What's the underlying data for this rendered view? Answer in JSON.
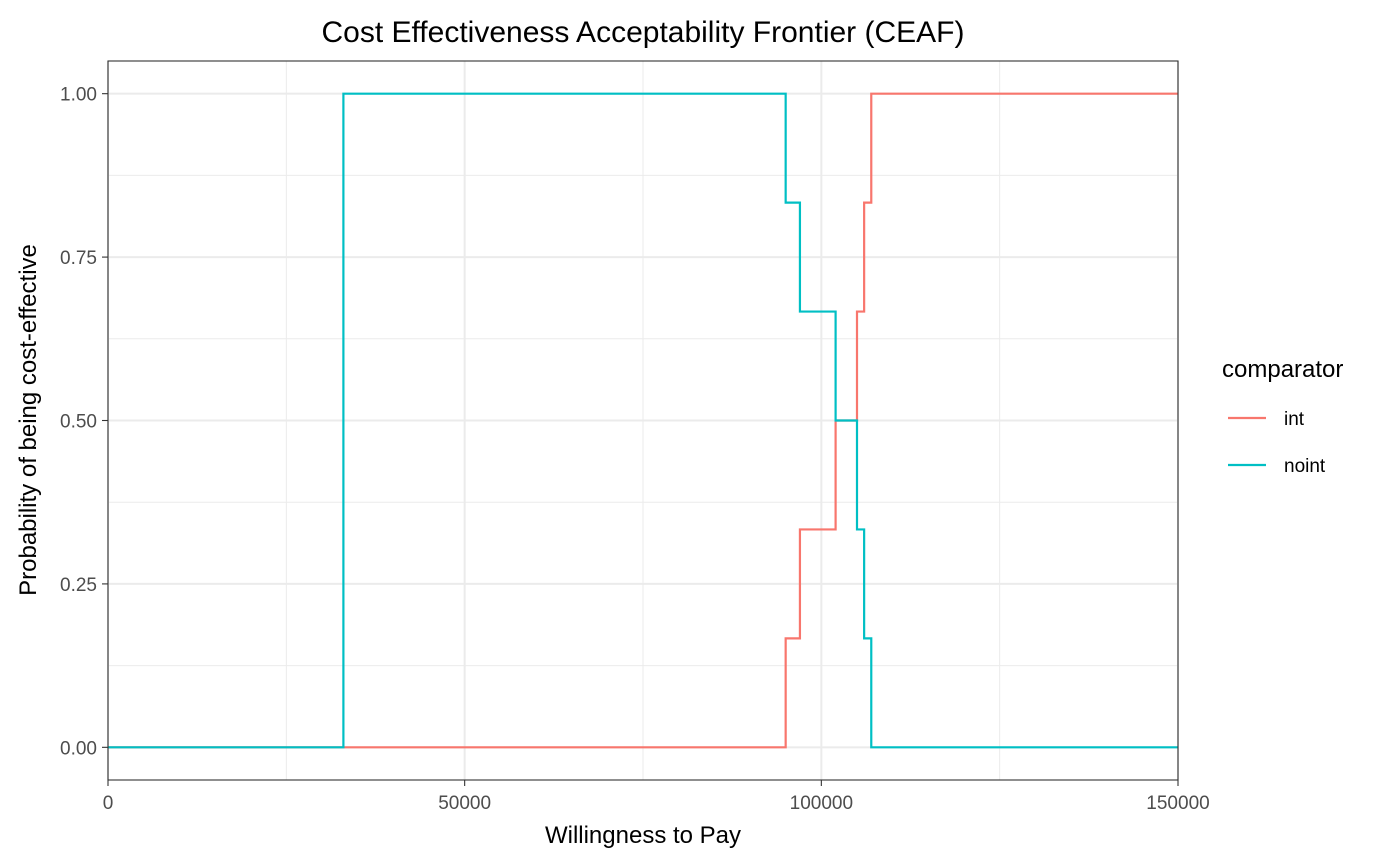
{
  "chart_data": {
    "type": "line",
    "step": true,
    "title": "Cost Effectiveness Acceptability Frontier (CEAF)",
    "xlabel": "Willingness to Pay",
    "ylabel": "Probability of being cost-effective",
    "xlim": [
      0,
      150000
    ],
    "ylim": [
      -0.05,
      1.05
    ],
    "xticks": [
      0,
      50000,
      100000,
      150000
    ],
    "xtick_labels": [
      "0",
      "50000",
      "100000",
      "150000"
    ],
    "yticks": [
      0,
      0.25,
      0.5,
      0.75,
      1
    ],
    "ytick_labels": [
      "0.00",
      "0.25",
      "0.50",
      "0.75",
      "1.00"
    ],
    "grid": true,
    "legend": {
      "title": "comparator",
      "position": "right"
    },
    "series": [
      {
        "name": "int",
        "color": "#F8766D",
        "x": [
          0,
          95000,
          97000,
          102000,
          105000,
          106000,
          107000,
          150000
        ],
        "y": [
          0,
          0.1667,
          0.3333,
          0.5,
          0.6667,
          0.8333,
          1.0,
          1.0
        ]
      },
      {
        "name": "noint",
        "color": "#00BFC4",
        "x": [
          0,
          33000,
          95000,
          97000,
          102000,
          105000,
          106000,
          107000,
          150000
        ],
        "y": [
          0,
          1.0,
          0.8333,
          0.6667,
          0.5,
          0.3333,
          0.1667,
          0,
          0
        ]
      }
    ]
  }
}
